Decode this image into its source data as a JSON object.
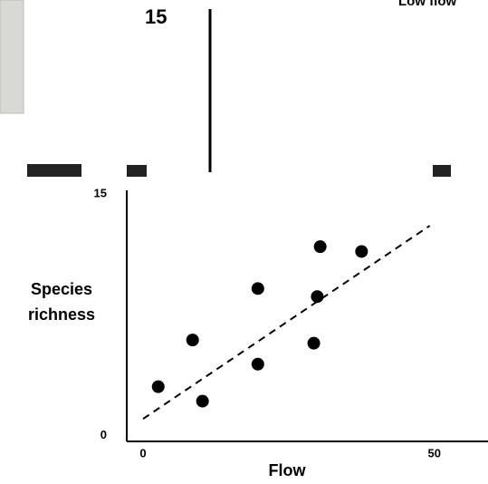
{
  "background": {
    "tick_label": "15",
    "legend_text": "Low flow"
  },
  "chart_data": {
    "type": "scatter",
    "xlabel": "Flow",
    "ylabel_lines": [
      "Species",
      "richness"
    ],
    "x": [
      2.6,
      8.5,
      10.2,
      19.7,
      19.7,
      29.3,
      29.9,
      30.4,
      37.5
    ],
    "values": [
      3.2,
      6.1,
      2.3,
      9.3,
      4.6,
      5.9,
      8.8,
      11.9,
      11.6
    ],
    "color": "#000000",
    "trendline": {
      "x": [
        0,
        49.2
      ],
      "y": [
        1.2,
        13.2
      ]
    },
    "xlim": [
      -2.8,
      59.2
    ],
    "ylim": [
      -0.2,
      15.4
    ],
    "xticks": [
      0,
      50
    ],
    "yticks": [
      0,
      15
    ]
  }
}
